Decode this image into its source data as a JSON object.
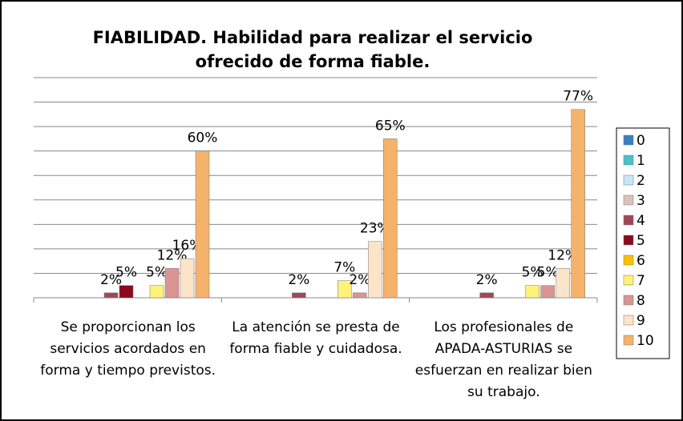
{
  "chart_data": {
    "type": "bar",
    "title": "FIABILIDAD. Habilidad para realizar el servicio ofrecido de forma fiable.",
    "categories": [
      "Se proporcionan los servicios acordados en forma y tiempo previstos.",
      "La atención se presta de forma fiable y cuidadosa.",
      "Los profesionales de APADA-ASTURIAS se esfuerzan en realizar bien su trabajo."
    ],
    "ylim": [
      0,
      90
    ],
    "yticks": [
      0,
      10,
      20,
      30,
      40,
      50,
      60,
      70,
      80,
      90
    ],
    "grid": true,
    "legend": "right",
    "series": [
      {
        "name": "0",
        "color": "#3a7fc4",
        "values": [
          0,
          0,
          0
        ],
        "value_labels": [
          null,
          null,
          null
        ]
      },
      {
        "name": "1",
        "color": "#4bc0c8",
        "values": [
          0,
          0,
          0
        ],
        "value_labels": [
          null,
          null,
          null
        ]
      },
      {
        "name": "2",
        "color": "#c5e6f5",
        "values": [
          0,
          0,
          0
        ],
        "value_labels": [
          null,
          null,
          null
        ]
      },
      {
        "name": "3",
        "color": "#d9c3b8",
        "values": [
          0,
          0,
          0
        ],
        "value_labels": [
          null,
          null,
          null
        ]
      },
      {
        "name": "4",
        "color": "#a0485a",
        "values": [
          2,
          2,
          2
        ],
        "value_labels": [
          "2%",
          "2%",
          "2%"
        ]
      },
      {
        "name": "5",
        "color": "#8b0a1a",
        "values": [
          5,
          0,
          0
        ],
        "value_labels": [
          "5%",
          null,
          null
        ]
      },
      {
        "name": "6",
        "color": "#ffc000",
        "values": [
          0,
          0,
          0
        ],
        "value_labels": [
          null,
          null,
          null
        ]
      },
      {
        "name": "7",
        "color": "#fff27a",
        "values": [
          5,
          7,
          5
        ],
        "value_labels": [
          "5%",
          "7%",
          "5%"
        ]
      },
      {
        "name": "8",
        "color": "#d99594",
        "values": [
          12,
          2,
          5
        ],
        "value_labels": [
          "12%",
          "2%",
          "5%"
        ]
      },
      {
        "name": "9",
        "color": "#fbe4c8",
        "values": [
          16,
          23,
          12
        ],
        "value_labels": [
          "16%",
          "23%",
          "12%"
        ]
      },
      {
        "name": "10",
        "color": "#f5b26b",
        "values": [
          60,
          65,
          77
        ],
        "value_labels": [
          "60%",
          "65%",
          "77%"
        ]
      }
    ]
  }
}
